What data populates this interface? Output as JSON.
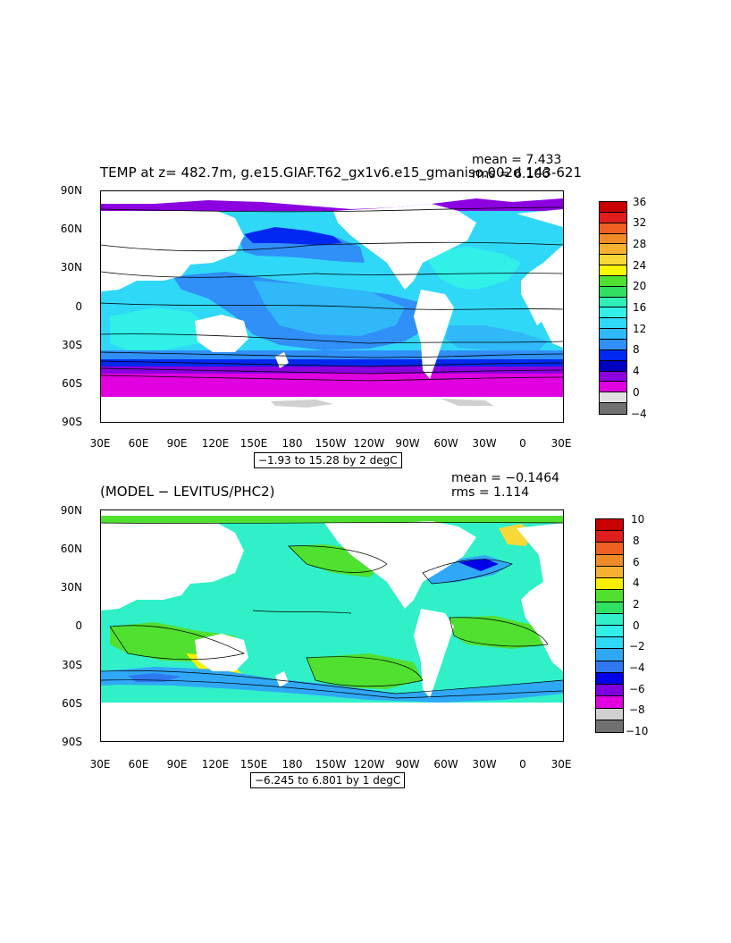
{
  "panel1": {
    "title": "TEMP at z= 482.7m, g.e15.GIAF.T62_gx1v6.e15_gmaniso.002d 143-621",
    "mean": "mean = 7.433",
    "rms": "rms = 6.106",
    "contour_label": "−1.93 to 15.28 by 2 degC",
    "colorbar_labels": [
      "36",
      "32",
      "28",
      "24",
      "20",
      "16",
      "12",
      "8",
      "4",
      "0",
      "−4"
    ],
    "colorbar_colors": [
      "#c80000",
      "#e01e1e",
      "#f06020",
      "#f08c28",
      "#f8b030",
      "#f8d838",
      "#f8f800",
      "#50e030",
      "#30e060",
      "#30f0b8",
      "#30f0e8",
      "#30d8f8",
      "#30b8f8",
      "#3090f8",
      "#0028f0",
      "#0000c0",
      "#8c00e0",
      "#e000e0",
      "#e0e0e0",
      "#707070"
    ]
  },
  "panel2": {
    "title": "(MODEL − LEVITUS/PHC2)",
    "mean": "mean = −0.1464",
    "rms": "rms = 1.114",
    "contour_label": "−6.245 to 6.801 by 1 degC",
    "colorbar_labels": [
      "10",
      "8",
      "6",
      "4",
      "2",
      "0",
      "−2",
      "−4",
      "−6",
      "−8",
      "−10"
    ],
    "colorbar_colors": [
      "#c80000",
      "#e01e1e",
      "#f06020",
      "#f08c28",
      "#f8b030",
      "#f8f000",
      "#50e030",
      "#30e060",
      "#30f0c8",
      "#30f0e8",
      "#30d8f8",
      "#30a8f8",
      "#3078f0",
      "#0000e8",
      "#8000e0",
      "#e000e0",
      "#d0d0d0",
      "#707070"
    ]
  },
  "lat_labels": [
    "90N",
    "60N",
    "30N",
    "0",
    "30S",
    "60S",
    "90S"
  ],
  "lon_labels": [
    "30E",
    "60E",
    "90E",
    "120E",
    "150E",
    "180",
    "150W",
    "120W",
    "90W",
    "60W",
    "30W",
    "0",
    "30E"
  ],
  "map_colors": {
    "land": "#ffffff",
    "ice_gray": "#d0d0d0"
  }
}
